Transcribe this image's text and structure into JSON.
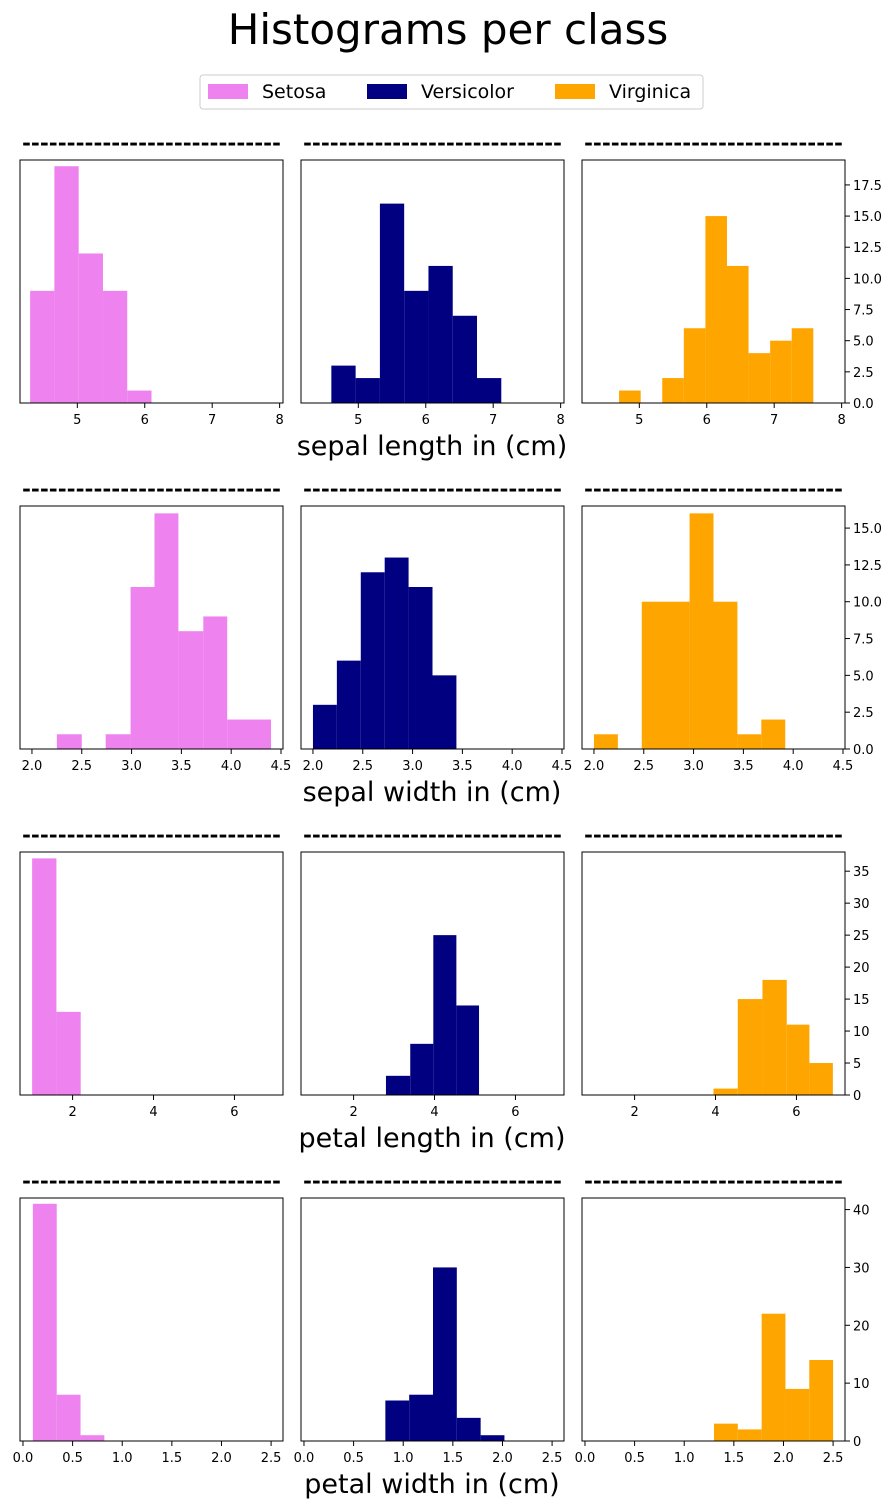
{
  "chart_data": {
    "type": "bar",
    "title": "Histograms per class",
    "legend": {
      "placement": "top-center",
      "entries": [
        {
          "name": "Setosa",
          "color": "#EE82EE"
        },
        {
          "name": "Versicolor",
          "color": "#000080"
        },
        {
          "name": "Virginica",
          "color": "#FFA500"
        }
      ]
    },
    "separator": "-----------------------------",
    "rows": [
      {
        "xlabel": "sepal length in (cm)",
        "xlim": [
          4.15,
          8.05
        ],
        "xticks": [
          5,
          6,
          7,
          8
        ],
        "xticklabels": [
          "5",
          "6",
          "7",
          "8"
        ],
        "ylim": [
          0,
          19.5
        ],
        "yticks": [
          0,
          2.5,
          5,
          7.5,
          10,
          12.5,
          15,
          17.5
        ],
        "yticklabels": [
          "0.0",
          "2.5",
          "5.0",
          "7.5",
          "10.0",
          "12.5",
          "15.0",
          "17.5"
        ],
        "series": [
          {
            "name": "Setosa",
            "color": "#EE82EE",
            "bins": [
              [
                4.3,
                4.66,
                9
              ],
              [
                4.66,
                5.02,
                19
              ],
              [
                5.02,
                5.38,
                12
              ],
              [
                5.38,
                5.74,
                9
              ],
              [
                5.74,
                6.1,
                1
              ]
            ]
          },
          {
            "name": "Versicolor",
            "color": "#000080",
            "bins": [
              [
                4.6,
                4.96,
                3
              ],
              [
                4.96,
                5.32,
                2
              ],
              [
                5.32,
                5.68,
                16
              ],
              [
                5.68,
                6.04,
                9
              ],
              [
                6.04,
                6.4,
                11
              ],
              [
                6.4,
                6.76,
                7
              ],
              [
                6.76,
                7.12,
                2
              ]
            ]
          },
          {
            "name": "Virginica",
            "color": "#FFA500",
            "bins": [
              [
                4.7,
                5.02,
                1
              ],
              [
                5.02,
                5.34,
                0
              ],
              [
                5.34,
                5.66,
                2
              ],
              [
                5.66,
                5.98,
                6
              ],
              [
                5.98,
                6.3,
                15
              ],
              [
                6.3,
                6.62,
                11
              ],
              [
                6.62,
                6.94,
                4
              ],
              [
                6.94,
                7.26,
                5
              ],
              [
                7.26,
                7.58,
                6
              ]
            ]
          }
        ]
      },
      {
        "xlabel": "sepal width in (cm)",
        "xlim": [
          1.88,
          4.52
        ],
        "xticks": [
          2.0,
          2.5,
          3.0,
          3.5,
          4.0,
          4.5
        ],
        "xticklabels": [
          "2.0",
          "2.5",
          "3.0",
          "3.5",
          "4.0",
          "4.5"
        ],
        "ylim": [
          0,
          16.5
        ],
        "yticks": [
          0,
          2.5,
          5,
          7.5,
          10,
          12.5,
          15
        ],
        "yticklabels": [
          "0.0",
          "2.5",
          "5.0",
          "7.5",
          "10.0",
          "12.5",
          "15.0"
        ],
        "series": [
          {
            "name": "Setosa",
            "color": "#EE82EE",
            "bins": [
              [
                2.25,
                2.5,
                1
              ],
              [
                2.5,
                2.74,
                0
              ],
              [
                2.74,
                2.99,
                1
              ],
              [
                2.99,
                3.23,
                11
              ],
              [
                3.23,
                3.47,
                16
              ],
              [
                3.47,
                3.72,
                8
              ],
              [
                3.72,
                3.96,
                9
              ],
              [
                3.96,
                4.4,
                2
              ]
            ]
          },
          {
            "name": "Versicolor",
            "color": "#000080",
            "bins": [
              [
                2.0,
                2.24,
                3
              ],
              [
                2.24,
                2.48,
                6
              ],
              [
                2.48,
                2.72,
                12
              ],
              [
                2.72,
                2.96,
                13
              ],
              [
                2.96,
                3.2,
                11
              ],
              [
                3.2,
                3.44,
                5
              ]
            ]
          },
          {
            "name": "Virginica",
            "color": "#FFA500",
            "bins": [
              [
                2.0,
                2.24,
                1
              ],
              [
                2.24,
                2.48,
                0
              ],
              [
                2.48,
                2.96,
                10
              ],
              [
                2.96,
                3.2,
                16
              ],
              [
                3.2,
                3.44,
                10
              ],
              [
                3.44,
                3.68,
                1
              ],
              [
                3.68,
                3.92,
                2
              ]
            ]
          }
        ]
      },
      {
        "xlabel": "petal length in (cm)",
        "xlim": [
          0.7,
          7.2
        ],
        "xticks": [
          2,
          4,
          6
        ],
        "xticklabels": [
          "2",
          "4",
          "6"
        ],
        "ylim": [
          0,
          38
        ],
        "yticks": [
          0,
          5,
          10,
          15,
          20,
          25,
          30,
          35
        ],
        "yticklabels": [
          "0",
          "5",
          "10",
          "15",
          "20",
          "25",
          "30",
          "35"
        ],
        "series": [
          {
            "name": "Setosa",
            "color": "#EE82EE",
            "bins": [
              [
                1.0,
                1.6,
                37
              ],
              [
                1.6,
                2.2,
                13
              ]
            ]
          },
          {
            "name": "Versicolor",
            "color": "#000080",
            "bins": [
              [
                2.8,
                3.4,
                3
              ],
              [
                3.4,
                3.97,
                8
              ],
              [
                3.97,
                4.54,
                25
              ],
              [
                4.54,
                5.1,
                14
              ]
            ]
          },
          {
            "name": "Virginica",
            "color": "#FFA500",
            "bins": [
              [
                3.95,
                4.55,
                1
              ],
              [
                4.55,
                5.16,
                15
              ],
              [
                5.16,
                5.76,
                18
              ],
              [
                5.76,
                6.32,
                11
              ],
              [
                6.32,
                6.9,
                5
              ]
            ]
          }
        ]
      },
      {
        "xlabel": "petal width in (cm)",
        "xlim": [
          -0.03,
          2.62
        ],
        "xticks": [
          0.0,
          0.5,
          1.0,
          1.5,
          2.0,
          2.5
        ],
        "xticklabels": [
          "0.0",
          "0.5",
          "1.0",
          "1.5",
          "2.0",
          "2.5"
        ],
        "ylim": [
          0,
          42
        ],
        "yticks": [
          0,
          10,
          20,
          30,
          40
        ],
        "yticklabels": [
          "0",
          "10",
          "20",
          "30",
          "40"
        ],
        "series": [
          {
            "name": "Setosa",
            "color": "#EE82EE",
            "bins": [
              [
                0.1,
                0.34,
                41
              ],
              [
                0.34,
                0.58,
                8
              ],
              [
                0.58,
                0.82,
                1
              ]
            ]
          },
          {
            "name": "Versicolor",
            "color": "#000080",
            "bins": [
              [
                0.82,
                1.06,
                7
              ],
              [
                1.06,
                1.3,
                8
              ],
              [
                1.3,
                1.54,
                30
              ],
              [
                1.54,
                1.78,
                4
              ],
              [
                1.78,
                2.02,
                1
              ]
            ]
          },
          {
            "name": "Virginica",
            "color": "#FFA500",
            "bins": [
              [
                1.3,
                1.54,
                3
              ],
              [
                1.54,
                1.78,
                2
              ],
              [
                1.78,
                2.02,
                22
              ],
              [
                2.02,
                2.26,
                9
              ],
              [
                2.26,
                2.5,
                14
              ]
            ]
          }
        ]
      }
    ]
  }
}
